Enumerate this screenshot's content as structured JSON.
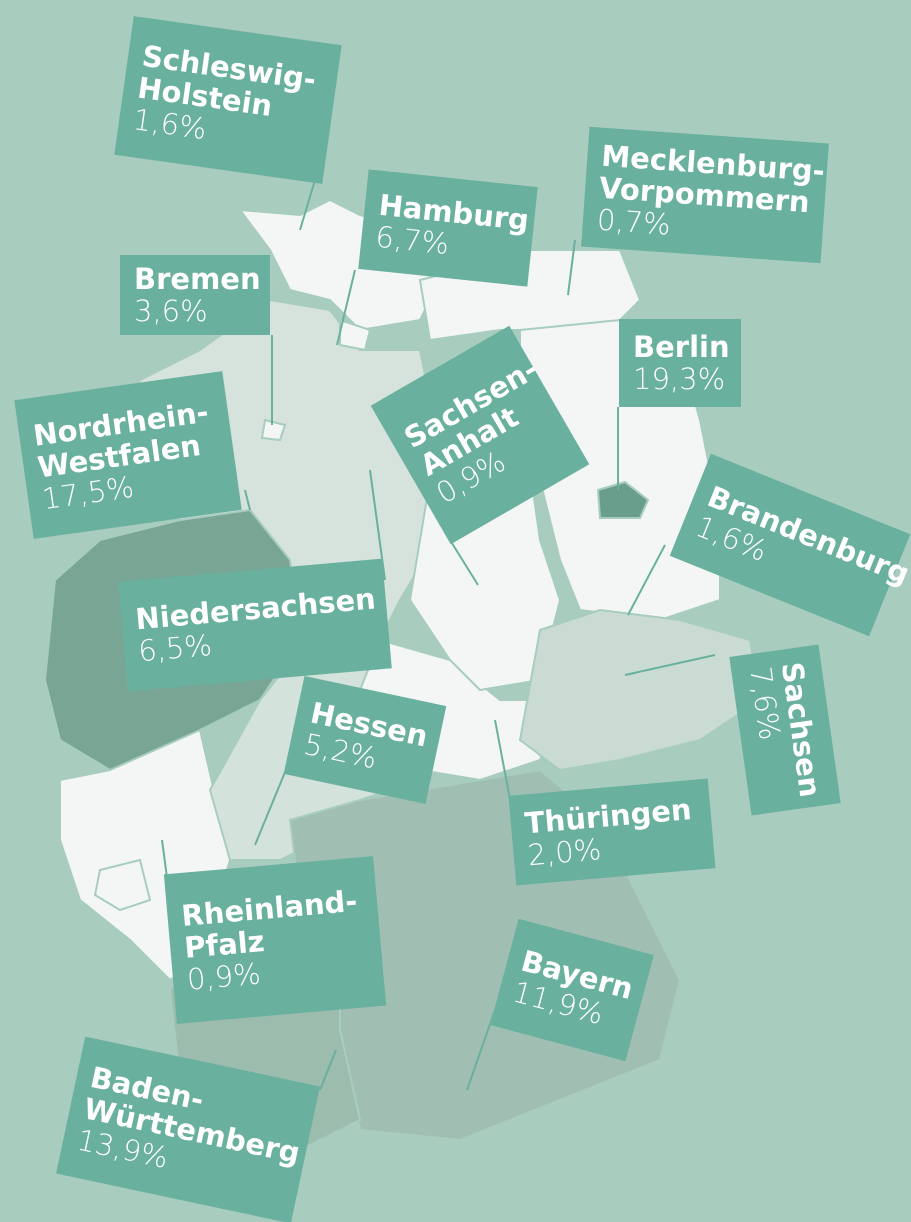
{
  "map": {
    "states": [
      {
        "name": [
          "Schleswig-",
          "Holstein"
        ],
        "value": "1,6%",
        "fill": "#f3f6f4"
      },
      {
        "name": [
          "Hamburg"
        ],
        "value": "6,7%",
        "fill": "#f3f6f4"
      },
      {
        "name": [
          "Mecklenburg-",
          "Vorpommern"
        ],
        "value": "0,7%",
        "fill": "#f3f6f4"
      },
      {
        "name": [
          "Bremen"
        ],
        "value": "3,6%",
        "fill": "#f3f6f4"
      },
      {
        "name": [
          "Nordrhein-",
          "Westfalen"
        ],
        "value": "17,5%",
        "fill": "#79a594"
      },
      {
        "name": [
          "Sachsen-",
          "Anhalt"
        ],
        "value": "0,9%",
        "fill": "#f3f6f4"
      },
      {
        "name": [
          "Berlin"
        ],
        "value": "19,3%",
        "fill": "#6a9e8c"
      },
      {
        "name": [
          "Brandenburg"
        ],
        "value": "1,6%",
        "fill": "#f3f6f4"
      },
      {
        "name": [
          "Sachsen"
        ],
        "value": "7,6%",
        "fill": "#c9dbd2"
      },
      {
        "name": [
          "Niedersachsen"
        ],
        "value": "6,5%",
        "fill": "#d5e3dc"
      },
      {
        "name": [
          "Hessen"
        ],
        "value": "5,2%",
        "fill": "#d3e2da"
      },
      {
        "name": [
          "Thüringen"
        ],
        "value": "2,0%",
        "fill": "#f3f6f4"
      },
      {
        "name": [
          "Rheinland-",
          "Pfalz"
        ],
        "value": "0,9%",
        "fill": "#f3f6f4"
      },
      {
        "name": [
          "Bayern"
        ],
        "value": "11,9%",
        "fill": "#a0bfb2"
      },
      {
        "name": [
          "Baden-",
          "Württemberg"
        ],
        "value": "13,9%",
        "fill": "#9cbcae"
      }
    ]
  }
}
